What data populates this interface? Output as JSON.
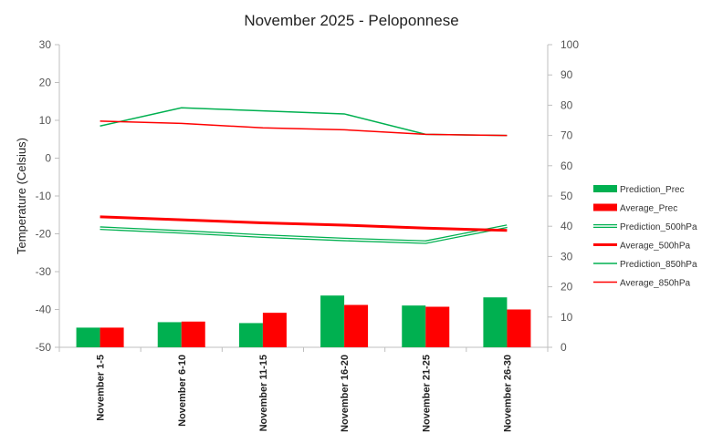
{
  "chart_data": {
    "type": "bar+line",
    "title": "November 2025 - Peloponnese",
    "ylabel": "Temperature (Celsius)",
    "y2label": "",
    "xlabel": "",
    "categories": [
      "November 1-5",
      "November 6-10",
      "November 11-15",
      "November 16-20",
      "November 21-25",
      "November 26-30"
    ],
    "ylim": [
      -50,
      30
    ],
    "y_ticks": [
      30,
      20,
      10,
      0,
      -10,
      -20,
      -30,
      -40,
      -50
    ],
    "y2lim": [
      0,
      100
    ],
    "y2_ticks": [
      100,
      90,
      80,
      70,
      60,
      50,
      40,
      30,
      20,
      10,
      0
    ],
    "grid": false,
    "legend_position": "right",
    "series": [
      {
        "name": "Prediction_Prec",
        "type": "bar",
        "axis": "right",
        "color": "#00b050",
        "values": [
          6.5,
          8.3,
          8.0,
          17.1,
          13.8,
          16.5
        ]
      },
      {
        "name": "Average_Prec",
        "type": "bar",
        "axis": "right",
        "color": "#ff0000",
        "values": [
          6.5,
          8.5,
          11.4,
          14.0,
          13.4,
          12.5
        ]
      },
      {
        "name": "Prediction_500hPa",
        "type": "line",
        "axis": "left",
        "color": "#00b050",
        "style": "double",
        "values": [
          -18.5,
          -19.5,
          -20.6,
          -21.5,
          -22.2,
          -18.0
        ]
      },
      {
        "name": "Average_500hPa",
        "type": "line",
        "axis": "left",
        "color": "#ff0000",
        "style": "thick",
        "values": [
          -15.5,
          -16.3,
          -17.1,
          -17.7,
          -18.5,
          -19.1
        ]
      },
      {
        "name": "Prediction_850hPa",
        "type": "line",
        "axis": "left",
        "color": "#00b050",
        "style": "thin",
        "values": [
          8.5,
          13.3,
          12.5,
          11.7,
          6.3,
          6.0
        ]
      },
      {
        "name": "Average_850hPa",
        "type": "line",
        "axis": "left",
        "color": "#ff0000",
        "style": "thin",
        "values": [
          9.8,
          9.2,
          8.0,
          7.5,
          6.3,
          6.0
        ]
      }
    ]
  }
}
